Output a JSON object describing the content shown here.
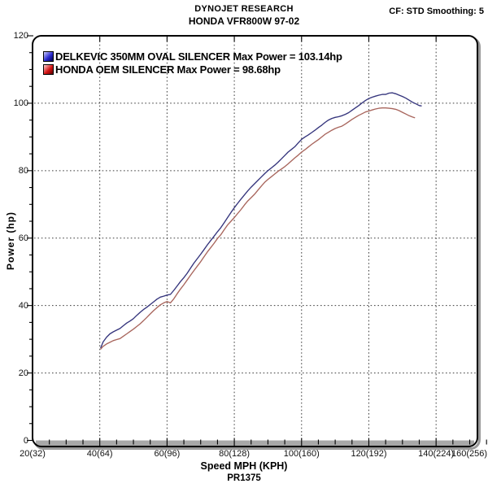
{
  "header": {
    "title": "DYNOJET RESEARCH",
    "subtitle": "HONDA VFR800W 97-02",
    "settings": "CF: STD  Smoothing: 5"
  },
  "axes": {
    "x_label": "Speed MPH (KPH)",
    "run_label": "PR1375",
    "y_label": "Power (hp)"
  },
  "legend": [
    {
      "label": "DELKEVIC 350MM OVAL SILENCER  Max Power  = 103.14hp",
      "swatch": "blue"
    },
    {
      "label": "HONDA OEM SILENCER Max Power = 98.68hp",
      "swatch": "red"
    }
  ],
  "chart_data": {
    "type": "line",
    "title": "DYNOJET RESEARCH",
    "subtitle": "HONDA VFR800W 97-02",
    "xlabel": "Speed MPH (KPH)",
    "ylabel": "Power (hp)",
    "xlim": [
      20,
      161
    ],
    "ylim": [
      0,
      120
    ],
    "grid": true,
    "legend_position": "top-left",
    "x_minor_step": 5,
    "y_minor_step": 5,
    "xticks": [
      {
        "value": 20,
        "label": "20(32)"
      },
      {
        "value": 40,
        "label": "40(64)"
      },
      {
        "value": 60,
        "label": "60(96)"
      },
      {
        "value": 80,
        "label": "80(128)"
      },
      {
        "value": 100,
        "label": "100(160)"
      },
      {
        "value": 120,
        "label": "120(192)"
      },
      {
        "value": 140,
        "label": "140(224)"
      },
      {
        "value": 160,
        "label": "160(256)"
      }
    ],
    "yticks": [
      {
        "value": 0,
        "label": "0"
      },
      {
        "value": 20,
        "label": "20"
      },
      {
        "value": 40,
        "label": "40"
      },
      {
        "value": 60,
        "label": "60"
      },
      {
        "value": 80,
        "label": "80"
      },
      {
        "value": 100,
        "label": "100"
      },
      {
        "value": 120,
        "label": "120"
      }
    ],
    "series": [
      {
        "name": "DELKEVIC 350MM OVAL SILENCER",
        "max_power_hp": 103.14,
        "color": "#34347c",
        "points": [
          [
            40.3,
            27.5
          ],
          [
            41,
            29.2
          ],
          [
            42,
            30.6
          ],
          [
            43,
            31.6
          ],
          [
            44,
            32.2
          ],
          [
            45,
            32.7
          ],
          [
            46,
            33.2
          ],
          [
            47,
            34.0
          ],
          [
            48,
            34.8
          ],
          [
            49,
            35.4
          ],
          [
            50,
            36.1
          ],
          [
            51,
            37.1
          ],
          [
            52,
            38.0
          ],
          [
            53,
            38.8
          ],
          [
            54,
            39.5
          ],
          [
            55,
            40.3
          ],
          [
            56,
            41.1
          ],
          [
            57,
            41.9
          ],
          [
            58,
            42.5
          ],
          [
            59,
            42.8
          ],
          [
            60,
            43.1
          ],
          [
            61,
            43.3
          ],
          [
            62,
            44.5
          ],
          [
            63,
            45.8
          ],
          [
            64,
            47.1
          ],
          [
            65,
            48.3
          ],
          [
            66,
            49.6
          ],
          [
            67,
            51.1
          ],
          [
            68,
            52.6
          ],
          [
            69,
            53.9
          ],
          [
            70,
            55.2
          ],
          [
            71,
            56.6
          ],
          [
            72,
            58.0
          ],
          [
            73,
            59.3
          ],
          [
            74,
            60.6
          ],
          [
            75,
            61.9
          ],
          [
            76,
            63.1
          ],
          [
            77,
            64.6
          ],
          [
            78,
            66.1
          ],
          [
            79,
            67.6
          ],
          [
            80,
            69.0
          ],
          [
            81,
            70.3
          ],
          [
            82,
            71.6
          ],
          [
            83,
            72.8
          ],
          [
            84,
            74.0
          ],
          [
            85,
            75.1
          ],
          [
            86,
            76.1
          ],
          [
            87,
            77.1
          ],
          [
            88,
            78.1
          ],
          [
            89,
            79.1
          ],
          [
            90,
            80.0
          ],
          [
            91,
            80.8
          ],
          [
            92,
            81.6
          ],
          [
            93,
            82.5
          ],
          [
            94,
            83.5
          ],
          [
            95,
            84.5
          ],
          [
            96,
            85.5
          ],
          [
            97,
            86.3
          ],
          [
            98,
            87.1
          ],
          [
            99,
            88.2
          ],
          [
            100,
            89.3
          ],
          [
            101,
            90.0
          ],
          [
            102,
            90.6
          ],
          [
            103,
            91.3
          ],
          [
            104,
            92.0
          ],
          [
            105,
            92.8
          ],
          [
            106,
            93.5
          ],
          [
            107,
            94.3
          ],
          [
            108,
            95.0
          ],
          [
            109,
            95.5
          ],
          [
            110,
            95.8
          ],
          [
            111,
            96.0
          ],
          [
            112,
            96.3
          ],
          [
            113,
            96.7
          ],
          [
            114,
            97.2
          ],
          [
            115,
            97.9
          ],
          [
            116,
            98.6
          ],
          [
            117,
            99.3
          ],
          [
            118,
            100.1
          ],
          [
            119,
            100.8
          ],
          [
            120,
            101.4
          ],
          [
            121,
            101.8
          ],
          [
            122,
            102.1
          ],
          [
            123,
            102.4
          ],
          [
            124,
            102.6
          ],
          [
            125,
            102.6
          ],
          [
            126,
            103.0
          ],
          [
            127,
            103.1
          ],
          [
            128,
            102.8
          ],
          [
            129,
            102.4
          ],
          [
            130,
            102.0
          ],
          [
            131,
            101.5
          ],
          [
            132,
            100.9
          ],
          [
            133,
            100.3
          ],
          [
            134,
            99.8
          ],
          [
            135,
            99.3
          ],
          [
            135.6,
            99.2
          ]
        ]
      },
      {
        "name": "HONDA OEM SILENCER",
        "max_power_hp": 98.68,
        "color": "#a8655c",
        "points": [
          [
            40.3,
            27.1
          ],
          [
            41,
            27.9
          ],
          [
            42,
            28.6
          ],
          [
            43,
            29.1
          ],
          [
            44,
            29.6
          ],
          [
            45,
            29.9
          ],
          [
            46,
            30.2
          ],
          [
            47,
            30.9
          ],
          [
            48,
            31.6
          ],
          [
            49,
            32.3
          ],
          [
            50,
            33.0
          ],
          [
            51,
            33.8
          ],
          [
            52,
            34.6
          ],
          [
            53,
            35.5
          ],
          [
            54,
            36.5
          ],
          [
            55,
            37.5
          ],
          [
            56,
            38.5
          ],
          [
            57,
            39.4
          ],
          [
            58,
            40.2
          ],
          [
            59,
            40.8
          ],
          [
            60,
            41.2
          ],
          [
            61,
            40.8
          ],
          [
            62,
            42.0
          ],
          [
            63,
            43.5
          ],
          [
            64,
            44.9
          ],
          [
            65,
            46.2
          ],
          [
            66,
            47.6
          ],
          [
            67,
            49.0
          ],
          [
            68,
            50.4
          ],
          [
            69,
            51.7
          ],
          [
            70,
            53.0
          ],
          [
            71,
            54.5
          ],
          [
            72,
            55.9
          ],
          [
            73,
            57.2
          ],
          [
            74,
            58.5
          ],
          [
            75,
            59.9
          ],
          [
            76,
            61.0
          ],
          [
            77,
            62.5
          ],
          [
            78,
            63.9
          ],
          [
            79,
            65.0
          ],
          [
            80,
            66.1
          ],
          [
            81,
            67.3
          ],
          [
            82,
            68.5
          ],
          [
            83,
            69.8
          ],
          [
            84,
            71.0
          ],
          [
            85,
            72.0
          ],
          [
            86,
            73.0
          ],
          [
            87,
            74.2
          ],
          [
            88,
            75.4
          ],
          [
            89,
            76.5
          ],
          [
            90,
            77.4
          ],
          [
            91,
            78.2
          ],
          [
            92,
            79.0
          ],
          [
            93,
            79.8
          ],
          [
            94,
            80.5
          ],
          [
            95,
            81.2
          ],
          [
            96,
            82.0
          ],
          [
            97,
            82.9
          ],
          [
            98,
            83.8
          ],
          [
            99,
            84.6
          ],
          [
            100,
            85.5
          ],
          [
            101,
            86.2
          ],
          [
            102,
            87.0
          ],
          [
            103,
            87.8
          ],
          [
            104,
            88.5
          ],
          [
            105,
            89.2
          ],
          [
            106,
            90.0
          ],
          [
            107,
            90.8
          ],
          [
            108,
            91.4
          ],
          [
            109,
            92.0
          ],
          [
            110,
            92.5
          ],
          [
            111,
            92.9
          ],
          [
            112,
            93.2
          ],
          [
            113,
            93.8
          ],
          [
            114,
            94.5
          ],
          [
            115,
            95.2
          ],
          [
            116,
            95.8
          ],
          [
            117,
            96.4
          ],
          [
            118,
            96.9
          ],
          [
            119,
            97.4
          ],
          [
            120,
            97.7
          ],
          [
            121,
            98.0
          ],
          [
            122,
            98.3
          ],
          [
            123,
            98.5
          ],
          [
            124,
            98.6
          ],
          [
            125,
            98.6
          ],
          [
            126,
            98.5
          ],
          [
            127,
            98.4
          ],
          [
            128,
            98.2
          ],
          [
            129,
            97.8
          ],
          [
            130,
            97.3
          ],
          [
            131,
            96.8
          ],
          [
            132,
            96.3
          ],
          [
            133,
            95.9
          ],
          [
            133.6,
            95.7
          ]
        ]
      }
    ]
  }
}
